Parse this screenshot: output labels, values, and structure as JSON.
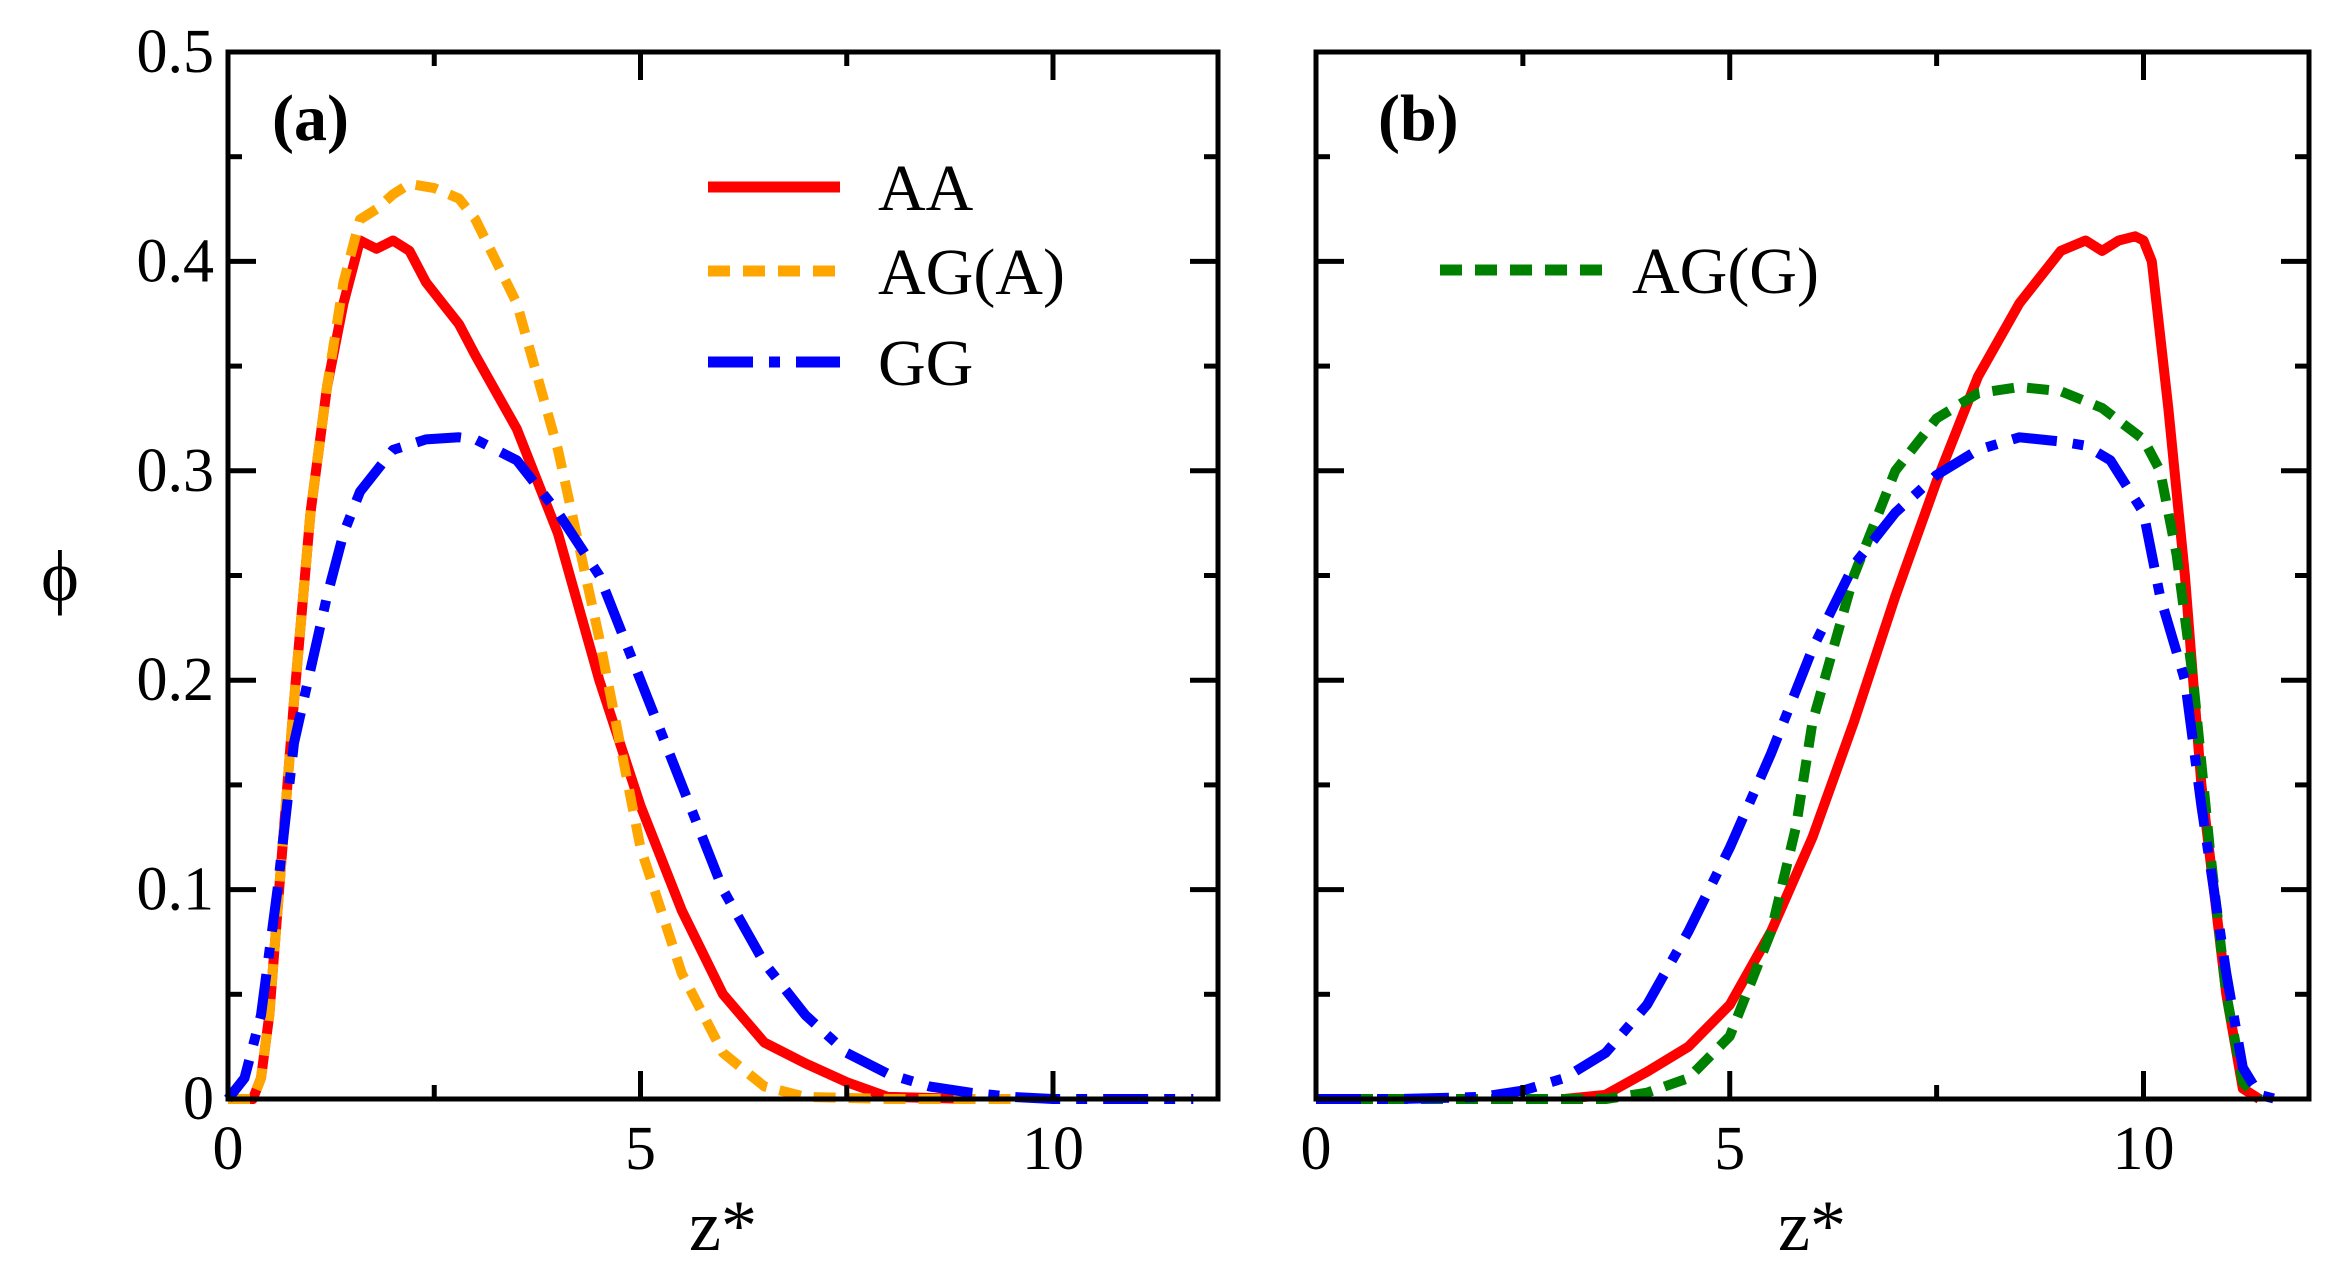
{
  "chart_data": [
    {
      "type": "line",
      "panel_label": "(a)",
      "xlabel": "z*",
      "ylabel": "ϕ",
      "xlim": [
        0,
        12
      ],
      "ylim": [
        0,
        0.5
      ],
      "xticks": [
        0,
        5,
        10
      ],
      "xtick_labels": [
        "0",
        "5",
        "10"
      ],
      "yticks": [
        0,
        0.1,
        0.2,
        0.3,
        0.4,
        0.5
      ],
      "ytick_labels": [
        "0",
        "0.1",
        "0.2",
        "0.3",
        "0.4",
        "0.5"
      ],
      "legend_position": "top-right",
      "series": [
        {
          "name": "AA",
          "style": "solid",
          "color": "#ff0000",
          "x": [
            0,
            0.3,
            0.4,
            0.5,
            0.6,
            0.8,
            1.0,
            1.2,
            1.4,
            1.6,
            1.8,
            2.0,
            2.2,
            2.4,
            2.6,
            2.8,
            3.0,
            3.5,
            4.0,
            4.5,
            5.0,
            5.5,
            6.0,
            6.5,
            7.0,
            7.5,
            8.0,
            9.0
          ],
          "y": [
            0,
            0,
            0.01,
            0.04,
            0.09,
            0.19,
            0.28,
            0.34,
            0.38,
            0.41,
            0.406,
            0.41,
            0.405,
            0.39,
            0.38,
            0.37,
            0.355,
            0.32,
            0.27,
            0.2,
            0.14,
            0.09,
            0.05,
            0.027,
            0.017,
            0.008,
            0.001,
            0
          ]
        },
        {
          "name": "AG(A)",
          "style": "dashed",
          "color": "#ffa500",
          "x": [
            0,
            0.3,
            0.4,
            0.5,
            0.6,
            0.8,
            1.0,
            1.2,
            1.4,
            1.6,
            1.8,
            2.0,
            2.2,
            2.5,
            2.8,
            3.0,
            3.5,
            4.0,
            4.5,
            5.0,
            5.5,
            6.0,
            6.5,
            7.0,
            8.0,
            9.5
          ],
          "y": [
            0,
            0,
            0.01,
            0.04,
            0.09,
            0.19,
            0.28,
            0.34,
            0.39,
            0.42,
            0.425,
            0.432,
            0.437,
            0.435,
            0.43,
            0.42,
            0.38,
            0.31,
            0.22,
            0.12,
            0.06,
            0.022,
            0.006,
            0.001,
            0,
            0
          ]
        },
        {
          "name": "GG",
          "style": "dashdot",
          "color": "#0000ff",
          "x": [
            0,
            0.2,
            0.4,
            0.6,
            0.8,
            1.0,
            1.2,
            1.4,
            1.6,
            1.8,
            2.0,
            2.4,
            2.8,
            3.0,
            3.5,
            4.0,
            4.5,
            5.0,
            5.5,
            6.0,
            6.5,
            7.0,
            7.5,
            8.0,
            8.5,
            9.0,
            9.5,
            10.0,
            11.7
          ],
          "y": [
            0,
            0.01,
            0.04,
            0.1,
            0.17,
            0.205,
            0.24,
            0.27,
            0.29,
            0.3,
            0.31,
            0.315,
            0.316,
            0.315,
            0.305,
            0.28,
            0.25,
            0.2,
            0.15,
            0.1,
            0.065,
            0.04,
            0.022,
            0.012,
            0.006,
            0.003,
            0.001,
            0,
            0
          ]
        }
      ]
    },
    {
      "type": "line",
      "panel_label": "(b)",
      "xlabel": "z*",
      "ylabel": "",
      "xlim": [
        0,
        12
      ],
      "ylim": [
        0,
        0.5
      ],
      "xticks": [
        0,
        5,
        10
      ],
      "xtick_labels": [
        "0",
        "5",
        "10"
      ],
      "yticks": [
        0,
        0.1,
        0.2,
        0.3,
        0.4,
        0.5
      ],
      "ytick_labels": [],
      "legend_position": "top-left",
      "series": [
        {
          "name": "AA",
          "style": "solid",
          "color": "#ff0000",
          "show_in_legend": false,
          "x": [
            3.0,
            3.5,
            4.0,
            4.5,
            5.0,
            5.5,
            6.0,
            6.5,
            7.0,
            7.5,
            8.0,
            8.5,
            9.0,
            9.3,
            9.5,
            9.7,
            9.9,
            10.0,
            10.1,
            10.3,
            10.5,
            10.7,
            11.0,
            11.2,
            11.4
          ],
          "y": [
            0,
            0.002,
            0.013,
            0.025,
            0.045,
            0.08,
            0.125,
            0.18,
            0.24,
            0.295,
            0.345,
            0.38,
            0.405,
            0.41,
            0.405,
            0.41,
            0.412,
            0.41,
            0.4,
            0.33,
            0.25,
            0.15,
            0.05,
            0.005,
            0
          ]
        },
        {
          "name": "AG(G)",
          "style": "dashed",
          "color": "#008000",
          "x": [
            0,
            1.5,
            2.0,
            3.0,
            3.5,
            4.0,
            4.5,
            5.0,
            5.5,
            5.8,
            6.0,
            6.5,
            7.0,
            7.5,
            8.0,
            8.5,
            9.0,
            9.5,
            10.0,
            10.2,
            10.4,
            10.6,
            10.8,
            11.0,
            11.2,
            11.4
          ],
          "y": [
            0,
            0,
            0,
            0,
            0,
            0.003,
            0.01,
            0.03,
            0.08,
            0.13,
            0.18,
            0.25,
            0.3,
            0.325,
            0.337,
            0.34,
            0.338,
            0.33,
            0.315,
            0.3,
            0.26,
            0.2,
            0.12,
            0.05,
            0.008,
            0
          ]
        },
        {
          "name": "GG",
          "style": "dashdot",
          "color": "#0000ff",
          "show_in_legend": false,
          "x": [
            0,
            1.0,
            2.0,
            2.5,
            3.0,
            3.5,
            4.0,
            4.5,
            5.0,
            5.5,
            6.0,
            6.5,
            7.0,
            7.5,
            8.0,
            8.5,
            9.0,
            9.3,
            9.6,
            10.0,
            10.2,
            10.5,
            10.7,
            11.0,
            11.2,
            11.4,
            11.6
          ],
          "y": [
            0,
            0,
            0.001,
            0.004,
            0.01,
            0.022,
            0.045,
            0.08,
            0.12,
            0.165,
            0.215,
            0.255,
            0.28,
            0.298,
            0.31,
            0.316,
            0.314,
            0.312,
            0.305,
            0.28,
            0.24,
            0.2,
            0.14,
            0.06,
            0.015,
            0.002,
            0
          ]
        }
      ]
    }
  ]
}
